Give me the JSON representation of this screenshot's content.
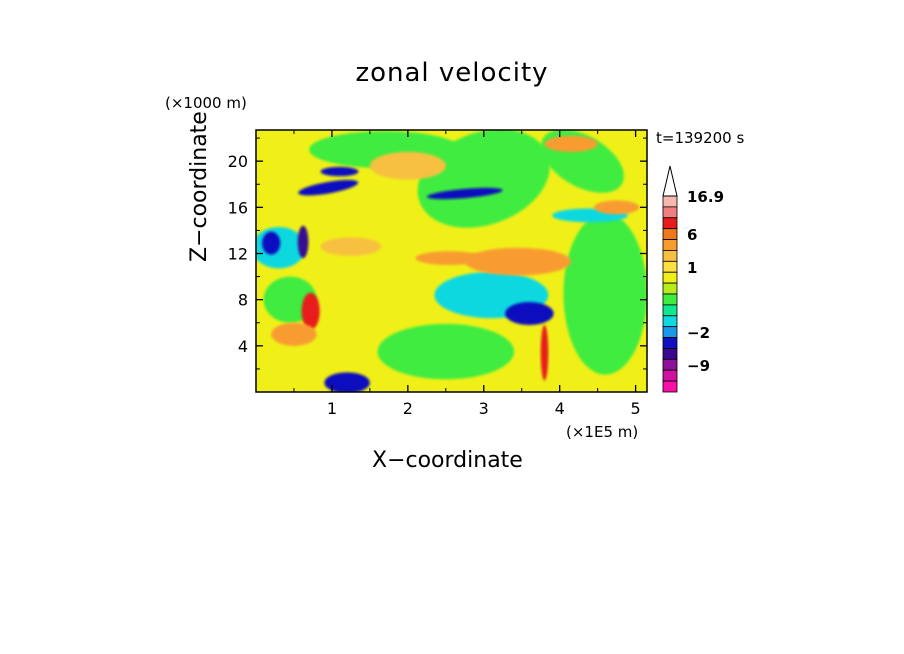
{
  "chart_data": {
    "type": "heatmap",
    "title": "zonal velocity",
    "xlabel": "X−coordinate",
    "ylabel": "Z−coordinate",
    "x_unit": "(×1E5 m)",
    "z_unit": "(×1000 m)",
    "time_label": "t=139200 s",
    "xlim": [
      0,
      5.15
    ],
    "ylim": [
      0,
      22.7
    ],
    "x_ticks": [
      1,
      2,
      3,
      4,
      5
    ],
    "y_ticks": [
      4,
      8,
      12,
      16,
      20
    ],
    "colorbar": {
      "labels": [
        "16.9",
        "6",
        "1",
        "−2",
        "−9"
      ],
      "levels": [
        16.9,
        12,
        9,
        6,
        4,
        3,
        2,
        1,
        0.5,
        0,
        -0.5,
        -1,
        -2,
        -4,
        -6,
        -9,
        -12,
        -16.9
      ],
      "colors": [
        "#f7b8b0",
        "#f08080",
        "#e81c1c",
        "#f07818",
        "#f89c30",
        "#f8c040",
        "#ffe040",
        "#f0f018",
        "#b8ec1c",
        "#40ec40",
        "#10e890",
        "#10d8e0",
        "#1898e8",
        "#1010c0",
        "#380890",
        "#8c1098",
        "#d010a0",
        "#f810a8"
      ],
      "extend_top": true
    },
    "background_colors": {
      "yellow": "#f0f018",
      "green": "#40ec40",
      "cyan": "#10d8e0",
      "blue": "#1010c0",
      "orange": "#f89c30",
      "light_orange": "#f8c040",
      "purple": "#380890",
      "red": "#e81c1c"
    }
  }
}
